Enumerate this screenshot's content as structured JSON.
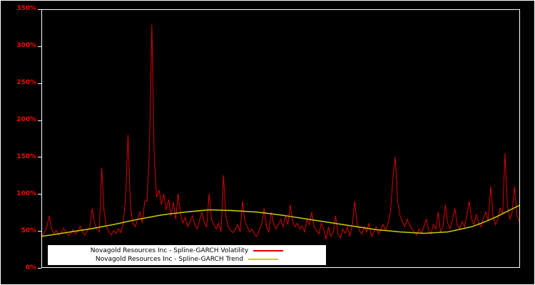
{
  "chart_data": {
    "type": "line",
    "title": "",
    "xlabel": "",
    "ylabel": "",
    "ylim": [
      0,
      350
    ],
    "yticks_labels": [
      "0%",
      "50%",
      "100%",
      "150%",
      "200%",
      "250%",
      "300%",
      "350%"
    ],
    "yticks_values": [
      0,
      50,
      100,
      150,
      200,
      250,
      300,
      350
    ],
    "grid": false,
    "background": "#000000",
    "frame_color": "#ffffff",
    "axis_label_color": "#ff0000",
    "legend_position": "bottom-left-inside",
    "series": [
      {
        "name": "Novagold Resources Inc - Spline-GARCH Volatility",
        "color": "#dd0000",
        "width": 1,
        "x_range": [
          0,
          100
        ],
        "values": [
          42,
          48,
          55,
          70,
          52,
          46,
          50,
          44,
          47,
          53,
          48,
          43,
          46,
          51,
          45,
          49,
          56,
          47,
          44,
          50,
          54,
          80,
          60,
          52,
          48,
          135,
          75,
          55,
          48,
          44,
          50,
          46,
          52,
          47,
          60,
          95,
          180,
          85,
          60,
          55,
          65,
          75,
          60,
          90,
          90,
          160,
          330,
          150,
          95,
          105,
          85,
          100,
          78,
          92,
          70,
          88,
          65,
          100,
          72,
          60,
          68,
          55,
          62,
          70,
          58,
          52,
          64,
          75,
          60,
          55,
          100,
          65,
          58,
          52,
          60,
          48,
          125,
          70,
          55,
          50,
          47,
          52,
          58,
          48,
          90,
          62,
          55,
          48,
          52,
          45,
          42,
          50,
          58,
          80,
          55,
          48,
          75,
          60,
          52,
          58,
          65,
          55,
          70,
          58,
          85,
          62,
          55,
          60,
          52,
          56,
          48,
          65,
          58,
          75,
          55,
          50,
          45,
          60,
          52,
          38,
          55,
          42,
          48,
          70,
          45,
          40,
          52,
          46,
          55,
          42,
          58,
          90,
          60,
          50,
          45,
          55,
          48,
          60,
          42,
          48,
          55,
          45,
          52,
          58,
          50,
          60,
          75,
          120,
          150,
          90,
          70,
          62,
          55,
          65,
          58,
          52,
          48,
          44,
          52,
          46,
          55,
          65,
          50,
          45,
          58,
          52,
          75,
          48,
          55,
          85,
          60,
          52,
          65,
          80,
          58,
          52,
          62,
          55,
          70,
          90,
          65,
          58,
          72,
          60,
          55,
          68,
          75,
          62,
          110,
          70,
          58,
          65,
          80,
          72,
          155,
          85,
          65,
          75,
          110,
          70,
          62
        ]
      },
      {
        "name": "Novagold Resources Inc - Spline-GARCH Trend",
        "color": "#cccc00",
        "width": 1.5,
        "x_range": [
          0,
          100
        ],
        "values": [
          42,
          44.5,
          47,
          49.5,
          52,
          55,
          58,
          61.5,
          65,
          68,
          71,
          73,
          75,
          76.5,
          78,
          77.5,
          77,
          76,
          75,
          73,
          71,
          68.5,
          66,
          63.5,
          61,
          58.5,
          56,
          53.5,
          51,
          49.5,
          48,
          47,
          46,
          47,
          48,
          51.5,
          55,
          61,
          68,
          76,
          84
        ]
      }
    ]
  },
  "legend": {
    "items": [
      {
        "label": "Novagold Resources Inc - Spline-GARCH Volatility",
        "color": "#dd0000"
      },
      {
        "label": "Novagold Resources Inc - Spline-GARCH Trend",
        "color": "#cccc00"
      }
    ]
  }
}
